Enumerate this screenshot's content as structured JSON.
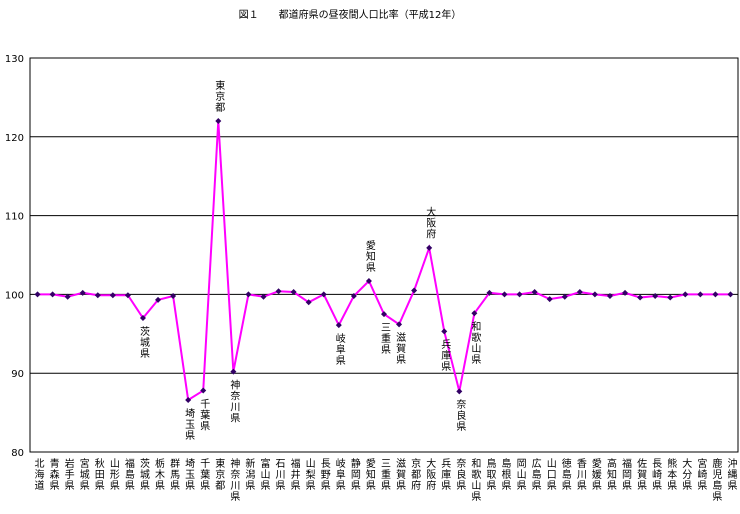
{
  "chart_data": {
    "type": "line",
    "title": "図１　　都道府県の昼夜間人口比率（平成12年）",
    "categories": [
      "北海道",
      "青森県",
      "岩手県",
      "宮城県",
      "秋田県",
      "山形県",
      "福島県",
      "茨城県",
      "栃木県",
      "群馬県",
      "埼玉県",
      "千葉県",
      "東京都",
      "神奈川県",
      "新潟県",
      "富山県",
      "石川県",
      "福井県",
      "山梨県",
      "長野県",
      "岐阜県",
      "静岡県",
      "愛知県",
      "三重県",
      "滋賀県",
      "京都府",
      "大阪府",
      "兵庫県",
      "奈良県",
      "和歌山県",
      "鳥取県",
      "島根県",
      "岡山県",
      "広島県",
      "山口県",
      "徳島県",
      "香川県",
      "愛媛県",
      "高知県",
      "福岡県",
      "佐賀県",
      "長崎県",
      "熊本県",
      "大分県",
      "宮崎県",
      "鹿児島県",
      "沖縄県"
    ],
    "series": [
      {
        "color": "#ff00ff",
        "marker_color": "#330066",
        "values": [
          100.0,
          100.0,
          99.7,
          100.2,
          99.9,
          99.9,
          99.9,
          97.0,
          99.3,
          99.8,
          86.6,
          87.8,
          122.0,
          90.2,
          100.0,
          99.7,
          100.4,
          100.3,
          99.0,
          100.0,
          96.1,
          99.8,
          101.7,
          97.5,
          96.2,
          100.5,
          105.9,
          95.3,
          87.7,
          97.6,
          100.2,
          100.0,
          100.0,
          100.3,
          99.4,
          99.7,
          100.3,
          100.0,
          99.8,
          100.2,
          99.6,
          99.8,
          99.6,
          100.0,
          100.0,
          100.0,
          100.0
        ]
      }
    ],
    "annotations": [
      "茨城県",
      "埼玉県",
      "千葉県",
      "東京都",
      "神奈川県",
      "岐阜県",
      "愛知県",
      "三重県",
      "滋賀県",
      "大阪府",
      "兵庫県",
      "奈良県",
      "和歌山県"
    ],
    "ylim": [
      80,
      130
    ],
    "yticks": [
      80,
      90,
      100,
      110,
      120,
      130
    ],
    "grid": true
  }
}
